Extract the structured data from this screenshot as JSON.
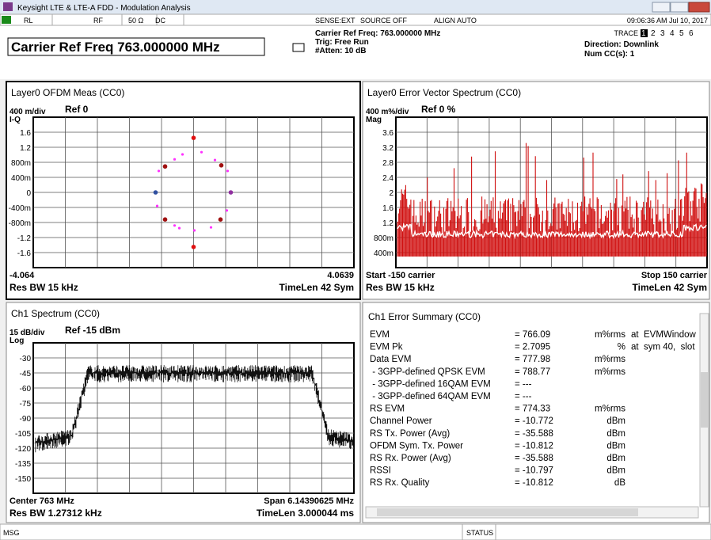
{
  "window": {
    "title": "Keysight LTE & LTE-A FDD - Modulation Analysis"
  },
  "status_bar": {
    "items": [
      "RL",
      "RF",
      "50 Ω",
      "DC",
      "SENSE:EXT",
      "SOURCE OFF",
      "ALIGN AUTO"
    ],
    "time": "09:06:36 AM Jul 10, 2017"
  },
  "header": {
    "carrier": "Carrier Ref Freq 763.000000 MHz",
    "info": [
      "Carrier Ref Freq: 763.000000 MHz",
      "Trig: Free Run",
      "#Atten: 10 dB"
    ],
    "trace_label": "TRACE",
    "traces": [
      "1",
      "2",
      "3",
      "4",
      "5",
      "6"
    ],
    "direction": "Direction: Downlink",
    "num_cc": "Num CC(s): 1"
  },
  "panels": [
    {
      "title": "Layer0 OFDM Meas (CC0)",
      "scale": "400 m/div",
      "ref": "Ref 0",
      "unit_label": "I-Q",
      "yticks": [
        "1.6",
        "1.2",
        "800m",
        "400m",
        "0",
        "-400m",
        "-800m",
        "-1.2",
        "-1.6"
      ],
      "bottom_left": "-4.064",
      "bottom_right": "4.0639",
      "footer_left": "Res BW 15 kHz",
      "footer_right": "TimeLen 42  Sym"
    },
    {
      "title": "Layer0 Error Vector Spectrum (CC0)",
      "scale": "400 m%/div",
      "ref": "Ref 0 %",
      "unit_label": "Mag",
      "yticks": [
        "3.6",
        "3.2",
        "2.8",
        "2.4",
        "2",
        "1.6",
        "1.2",
        "800m",
        "400m"
      ],
      "bottom_left": "Start -150  carrier",
      "bottom_right": "Stop 150  carrier",
      "footer_left": "Res BW 15 kHz",
      "footer_right": "TimeLen 42  Sym"
    },
    {
      "title": "Ch1 Spectrum (CC0)",
      "scale": "15 dB/div",
      "ref": "Ref -15 dBm",
      "unit_label": "Log",
      "yticks": [
        "-30",
        "-45",
        "-60",
        "-75",
        "-90",
        "-105",
        "-120",
        "-135",
        "-150"
      ],
      "bottom_left": "Center 763 MHz",
      "bottom_right": "Span 6.14390625 MHz",
      "footer_left": "Res BW 1.27312 kHz",
      "footer_right": "TimeLen 3.000044 ms"
    }
  ],
  "summary": {
    "title": "Ch1 Error Summary (CC0)",
    "rows": [
      [
        "EVM",
        "= 766.09",
        "m%rms",
        "at  EVMWindow"
      ],
      [
        "EVM Pk",
        "= 2.7095",
        "%",
        "at  sym 40,  slot"
      ],
      [
        "Data EVM",
        "= 777.98",
        "m%rms"
      ],
      [
        " - 3GPP-defined QPSK EVM",
        "= 788.77",
        "m%rms"
      ],
      [
        " - 3GPP-defined 16QAM EVM",
        "= ---"
      ],
      [
        " - 3GPP-defined 64QAM EVM",
        "= ---"
      ],
      [
        "RS EVM",
        "= 774.33",
        "m%rms"
      ],
      [
        "Channel Power",
        "= -10.772",
        "dBm"
      ],
      [
        "RS Tx. Power (Avg)",
        "= -35.588",
        "dBm"
      ],
      [
        "OFDM Sym. Tx. Power",
        "= -10.812",
        "dBm"
      ],
      [
        "RS Rx. Power (Avg)",
        "= -35.588",
        "dBm"
      ],
      [
        "RSSI",
        "= -10.797",
        "dBm"
      ],
      [
        "RS Rx. Quality",
        "= -10.812",
        "dB"
      ]
    ]
  },
  "constellation": [
    {
      "i": 0,
      "q": 1.45,
      "color": "#e01010"
    },
    {
      "i": 0,
      "q": -1.45,
      "color": "#e01010"
    },
    {
      "i": -0.96,
      "q": 0,
      "color": "#3050a0"
    },
    {
      "i": 0.94,
      "q": 0,
      "color": "#9030a0"
    },
    {
      "i": -0.72,
      "q": 0.69,
      "color": "#a01010"
    },
    {
      "i": 0.7,
      "q": 0.72,
      "color": "#a01010"
    },
    {
      "i": -0.72,
      "q": -0.72,
      "color": "#a01010"
    },
    {
      "i": 0.68,
      "q": -0.72,
      "color": "#a01010"
    },
    {
      "i": -0.28,
      "q": 1.01,
      "color": "#ff30ff"
    },
    {
      "i": 0.2,
      "q": 1.07,
      "color": "#ff30ff"
    },
    {
      "i": -0.48,
      "q": 0.88,
      "color": "#ff30ff"
    },
    {
      "i": 0.54,
      "q": 0.86,
      "color": "#ff30ff"
    },
    {
      "i": -0.88,
      "q": 0.57,
      "color": "#ff30ff"
    },
    {
      "i": 0.86,
      "q": 0.57,
      "color": "#ff30ff"
    },
    {
      "i": -0.92,
      "q": -0.36,
      "color": "#ff30ff"
    },
    {
      "i": 0.84,
      "q": -0.48,
      "color": "#ff30ff"
    },
    {
      "i": -0.48,
      "q": -0.88,
      "color": "#ff30ff"
    },
    {
      "i": -0.36,
      "q": -0.95,
      "color": "#ff30ff"
    },
    {
      "i": 0.02,
      "q": -1.01,
      "color": "#ff30ff"
    },
    {
      "i": 0.44,
      "q": -0.93,
      "color": "#ff30ff"
    }
  ],
  "footer": {
    "msg": "MSG",
    "status": "STATUS"
  }
}
